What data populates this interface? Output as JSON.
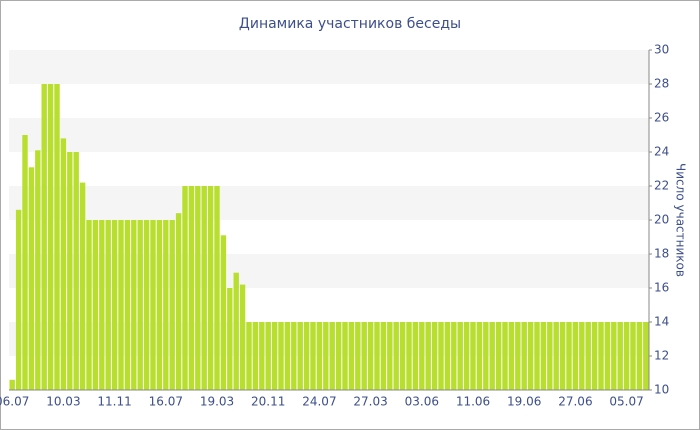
{
  "chart_data": {
    "type": "bar",
    "title": "Динамика участников беседы",
    "y_label": "Число участников",
    "categories": [
      "06.07",
      null,
      null,
      null,
      null,
      null,
      null,
      null,
      "10.03",
      null,
      null,
      null,
      null,
      null,
      null,
      null,
      "11.11",
      null,
      null,
      null,
      null,
      null,
      null,
      null,
      "16.07",
      null,
      null,
      null,
      null,
      null,
      null,
      null,
      "19.03",
      null,
      null,
      null,
      null,
      null,
      null,
      null,
      "20.11",
      null,
      null,
      null,
      null,
      null,
      null,
      null,
      "24.07",
      null,
      null,
      null,
      null,
      null,
      null,
      null,
      "27.03",
      null,
      null,
      null,
      null,
      null,
      null,
      null,
      "03.06",
      null,
      null,
      null,
      null,
      null,
      null,
      null,
      "11.06",
      null,
      null,
      null,
      null,
      null,
      null,
      null,
      "19.06",
      null,
      null,
      null,
      null,
      null,
      null,
      null,
      "27.06",
      null,
      null,
      null,
      null,
      null,
      null,
      null,
      "05.07",
      null,
      null,
      null
    ],
    "values": [
      10.6,
      20.6,
      25,
      23.1,
      24.1,
      28,
      28,
      28,
      24.8,
      24,
      24,
      22.2,
      20,
      20,
      20,
      20,
      20,
      20,
      20,
      20,
      20,
      20,
      20,
      20,
      20,
      20,
      20.4,
      22,
      22,
      22,
      22,
      22,
      22,
      19.1,
      16,
      16.9,
      16.2,
      14,
      14,
      14,
      14,
      14,
      14,
      14,
      14,
      14,
      14,
      14,
      14,
      14,
      14,
      14,
      14,
      14,
      14,
      14,
      14,
      14,
      14,
      14,
      14,
      14,
      14,
      14,
      14,
      14,
      14,
      14,
      14,
      14,
      14,
      14,
      14,
      14,
      14,
      14,
      14,
      14,
      14,
      14,
      14,
      14,
      14,
      14,
      14,
      14,
      14,
      14,
      14,
      14,
      14,
      14,
      14,
      14,
      14,
      14,
      14,
      14,
      14,
      14
    ],
    "color": "#b8de2e",
    "ylim": [
      10,
      30
    ],
    "yticks": [
      10,
      12,
      14,
      16,
      18,
      20,
      22,
      24,
      26,
      28,
      30
    ],
    "grid": true
  }
}
